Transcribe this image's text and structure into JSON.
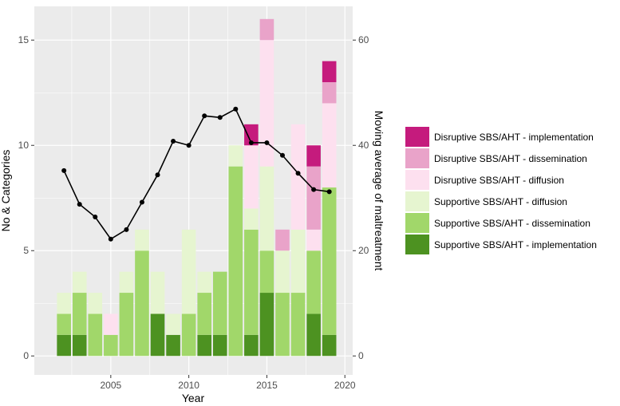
{
  "chart_data": {
    "type": "bar",
    "stacked": true,
    "x": [
      2002,
      2003,
      2004,
      2005,
      2006,
      2007,
      2008,
      2009,
      2010,
      2011,
      2012,
      2013,
      2014,
      2015,
      2016,
      2017,
      2018,
      2019
    ],
    "xlabel": "Year",
    "ylabel": "No & Categories",
    "y2label": "Moving average of maltreatment",
    "xlim": [
      2000.1,
      2020.5
    ],
    "ylim": [
      -0.9,
      16.6
    ],
    "y2lim": [
      -3.6,
      66.4
    ],
    "xticks": [
      2005,
      2010,
      2015,
      2020
    ],
    "yticks": [
      0,
      5,
      10,
      15
    ],
    "y2ticks": [
      0,
      20,
      40,
      60
    ],
    "grid": true,
    "legend_position": "right",
    "series": [
      {
        "name": "Supportive SBS/AHT - implementation",
        "color": "#4d9221",
        "values": [
          1,
          1,
          0,
          0,
          0,
          0,
          2,
          1,
          0,
          1,
          1,
          0,
          1,
          3,
          0,
          0,
          2,
          1
        ]
      },
      {
        "name": "Supportive SBS/AHT - dissemination",
        "color": "#a1d76a",
        "values": [
          1,
          2,
          2,
          1,
          3,
          5,
          0,
          0,
          2,
          2,
          3,
          9,
          5,
          2,
          3,
          3,
          3,
          7
        ]
      },
      {
        "name": "Supportive SBS/AHT - diffusion",
        "color": "#e6f5d0",
        "values": [
          1,
          1,
          1,
          0,
          1,
          1,
          2,
          1,
          4,
          1,
          0,
          1,
          1,
          4,
          2,
          3,
          0,
          0
        ]
      },
      {
        "name": "Disruptive SBS/AHT - diffusion",
        "color": "#fde0ef",
        "values": [
          0,
          0,
          0,
          1,
          0,
          0,
          0,
          0,
          0,
          0,
          0,
          0,
          3,
          6,
          0,
          5,
          1,
          4
        ]
      },
      {
        "name": "Disruptive SBS/AHT - dissemination",
        "color": "#e9a3c9",
        "values": [
          0,
          0,
          0,
          0,
          0,
          0,
          0,
          0,
          0,
          0,
          0,
          0,
          0,
          1,
          1,
          0,
          3,
          1
        ]
      },
      {
        "name": "Disruptive SBS/AHT - implementation",
        "color": "#c51b7d",
        "values": [
          0,
          0,
          0,
          0,
          0,
          0,
          0,
          0,
          0,
          0,
          0,
          0,
          1,
          0,
          0,
          0,
          1,
          1
        ]
      }
    ],
    "line": {
      "axis": "right",
      "color": "#000000",
      "values": [
        35.2,
        28.8,
        26.4,
        22.2,
        24.0,
        29.2,
        34.4,
        40.8,
        40.0,
        45.6,
        45.3,
        46.9,
        40.5,
        40.5,
        38.1,
        34.7,
        31.6,
        31.2
      ]
    },
    "legend_order": [
      5,
      4,
      3,
      2,
      1,
      0
    ]
  }
}
